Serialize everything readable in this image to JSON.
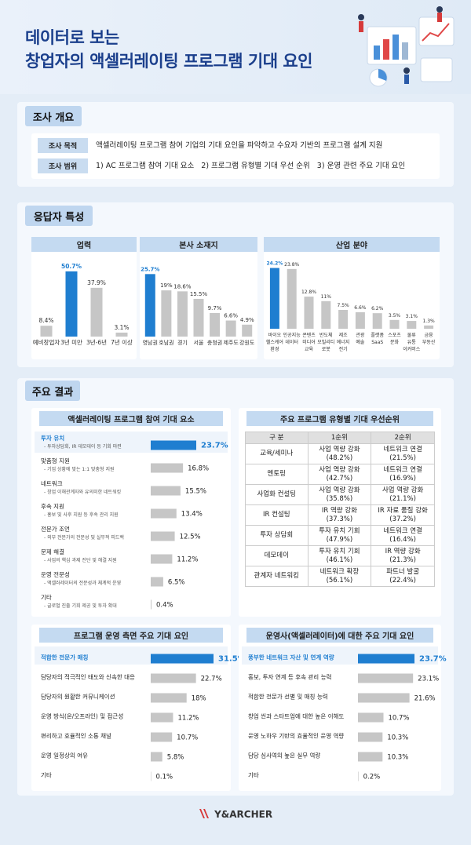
{
  "header": {
    "title_line1": "데이터로 보는",
    "title_line2": "창업자의 액셀러레이팅 프로그램 기대 요인"
  },
  "survey": {
    "tab": "조사 개요",
    "rows": [
      {
        "label": "조사 목적",
        "text": "액셀러레이팅 프로그램 참여 기업의 기대 요인을 파악하고 수요자 기반의 프로그램 설계 지원"
      },
      {
        "label": "조사 범위",
        "text": "1) AC 프로그램 참여 기대 요소   2) 프로그램 유형별 기대 우선 순위   3) 운영 관련 주요 기대 요인"
      }
    ]
  },
  "respondents": {
    "tab": "응답자 특성"
  },
  "results": {
    "tab": "주요 결과"
  },
  "footer": {
    "brand": "Y&ARCHER"
  },
  "chart_data": [
    {
      "id": "career",
      "type": "bar",
      "title": "업력",
      "categories": [
        "예비창업자",
        "3년 미만",
        "3년-6년",
        "7년 이상"
      ],
      "values": [
        8.4,
        50.7,
        37.9,
        3.1
      ],
      "labels": [
        "8.4%",
        "50.7%",
        "37.9%",
        "3.1%"
      ],
      "highlight": 1
    },
    {
      "id": "hq",
      "type": "bar",
      "title": "본사 소재지",
      "categories": [
        "영남권",
        "호남권",
        "경기",
        "서울",
        "충청권",
        "제주도",
        "강원도"
      ],
      "values": [
        25.7,
        19,
        18.6,
        15.5,
        9.7,
        6.6,
        4.9
      ],
      "labels": [
        "25.7%",
        "19%",
        "18.6%",
        "15.5%",
        "9.7%",
        "6.6%",
        "4.9%"
      ],
      "highlight": 0
    },
    {
      "id": "industry",
      "type": "bar",
      "title": "산업 분야",
      "categories": [
        "바이오\n헬스케어\n환경",
        "인공지능\n데이터",
        "콘텐츠\n미디어\n교육",
        "반도체\n모빌리티\n로봇",
        "제조\n에너지\n전기",
        "관광\n예술",
        "플랫폼\nSaaS",
        "스포츠\n문화",
        "물류\n유통\n이커머스",
        "금융\n부동산"
      ],
      "values": [
        24.2,
        23.8,
        12.8,
        11,
        7.5,
        6.6,
        6.2,
        3.5,
        3.1,
        1.3
      ],
      "labels": [
        "24.2%",
        "23.8%",
        "12.8%",
        "11%",
        "7.5%",
        "6.6%",
        "6.2%",
        "3.5%",
        "3.1%",
        "1.3%"
      ],
      "highlight": 0
    },
    {
      "id": "factors",
      "type": "bar",
      "orientation": "horizontal",
      "title": "액셀러레이팅 프로그램 참여 기대 요소",
      "categories": [
        "투자 유치",
        "맞춤형 지원",
        "네트워크",
        "후속 지원",
        "전문가 조언",
        "문제 해결",
        "운영 전문성",
        "기타"
      ],
      "subs": [
        "- 투자상담회, IR 데모데이 등 기회 마련",
        "- 기업 상황에 맞는 1:1 맞춤형 지원",
        "- 창업 이해관계자와 유의미한 네트워킹",
        "- 홍보 및 사후 지원 등 후속 관리 지원",
        "- 외부 전문가의 전문성 및 실무적 피드백",
        "- 사업의 핵심 과제 진단 및 해결 지원",
        "- 액셀러레이터의 전문성과 체계적 운영",
        "- 글로벌 진출 기회 제공 및 투자 확대"
      ],
      "values": [
        23.7,
        16.8,
        15.5,
        13.4,
        12.5,
        11.2,
        6.5,
        0.4
      ],
      "labels": [
        "23.7%",
        "16.8%",
        "15.5%",
        "13.4%",
        "12.5%",
        "11.2%",
        "6.5%",
        "0.4%"
      ],
      "highlight": 0
    },
    {
      "id": "priority",
      "type": "table",
      "title": "주요 프로그램 유형별 기대 우선순위",
      "columns": [
        "구 분",
        "1순위",
        "2순위"
      ],
      "rows": [
        [
          "교육/세미나",
          "사업 역량 강화\n(48.2%)",
          "네트워크 연결\n(21.5%)"
        ],
        [
          "멘토링",
          "사업 역량 강화\n(42.7%)",
          "네트워크 연결\n(16.9%)"
        ],
        [
          "사업화 컨설팅",
          "사업 역량 강화\n(35.8%)",
          "사업 역량 강화\n(21.1%)"
        ],
        [
          "IR 컨설팅",
          "IR 역량 강화\n(37.3%)",
          "IR 자료 품질 강화\n(37.2%)"
        ],
        [
          "투자 상담회",
          "투자 유치 기회\n(47.9%)",
          "네트워크 연결\n(16.4%)"
        ],
        [
          "데모데이",
          "투자 유치 기회\n(46.1%)",
          "IR 역량 강화\n(21.3%)"
        ],
        [
          "관계자 네트워킹",
          "네트워크 확장\n(56.1%)",
          "파트너 발굴\n(22.4%)"
        ]
      ]
    },
    {
      "id": "operation",
      "type": "bar",
      "orientation": "horizontal",
      "title": "프로그램 운영 측면 주요 기대 요인",
      "categories": [
        "적합한 전문가 매칭",
        "담당자의 적극적인 태도와 신속한 대응",
        "담당자의 원활한 커뮤니케이션",
        "운영 방식(온/오프라인) 및 접근성",
        "편리하고 효율적인 소통 채널",
        "운영 일정상의 여유",
        "기타"
      ],
      "values": [
        31.5,
        22.7,
        18,
        11.2,
        10.7,
        5.8,
        0.1
      ],
      "labels": [
        "31.5%",
        "22.7%",
        "18%",
        "11.2%",
        "10.7%",
        "5.8%",
        "0.1%"
      ],
      "highlight": 0
    },
    {
      "id": "operator",
      "type": "bar",
      "orientation": "horizontal",
      "title": "운영사(액셀러레이터)에 대한 주요 기대 요인",
      "categories": [
        "풍부한 네트워크 자산 및 연계 역량",
        "홍보, 투자 연계 등 후속 관리 능력",
        "적합한 전문가 선별 및 매칭 능력",
        "창업 씬과 스타트업에 대한 높은 이해도",
        "운영 노하우 기반의 효율적인 운영 역량",
        "담당 심사역의 높은 실무 역량",
        "기타"
      ],
      "values": [
        23.7,
        23.1,
        21.6,
        10.7,
        10.3,
        10.3,
        0.2
      ],
      "labels": [
        "23.7%",
        "23.1%",
        "21.6%",
        "10.7%",
        "10.3%",
        "10.3%",
        "0.2%"
      ],
      "highlight": 0
    }
  ],
  "colors": {
    "accent": "#1f7ed0",
    "bar": "#c6c6c6",
    "title": "#1b3f8c",
    "tab": "#bfd6ef",
    "head": "#c4daf1"
  }
}
